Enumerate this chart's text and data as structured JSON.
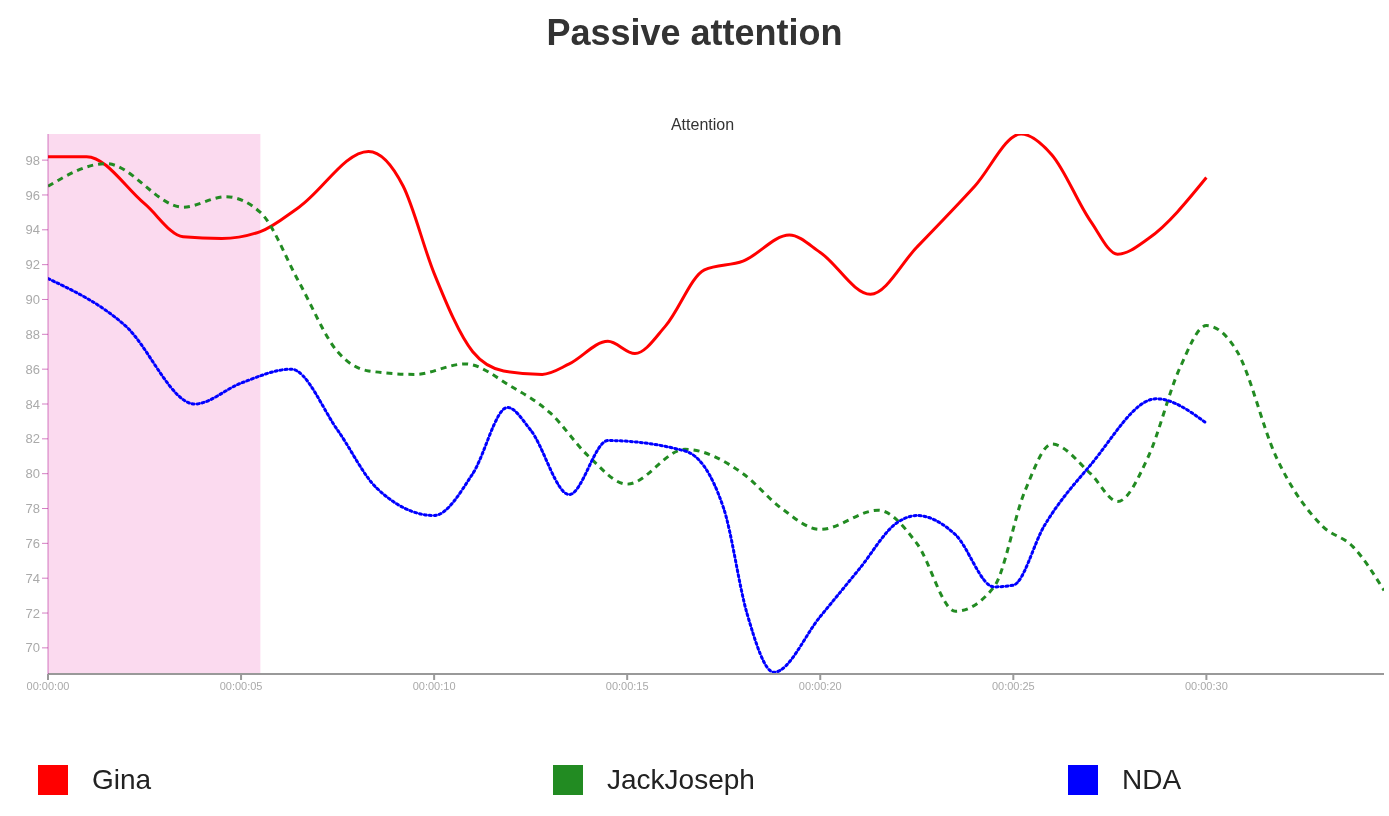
{
  "chart_data": {
    "type": "line",
    "title": "Passive attention",
    "ylabel": "Attention",
    "xlim": [
      0,
      34.6
    ],
    "ylim": [
      68.5,
      99.5
    ],
    "xticks": [
      {
        "value": 0,
        "label": "00:00:00"
      },
      {
        "value": 5,
        "label": "00:00:05"
      },
      {
        "value": 10,
        "label": "00:00:10"
      },
      {
        "value": 15,
        "label": "00:00:15"
      },
      {
        "value": 20,
        "label": "00:00:20"
      },
      {
        "value": 25,
        "label": "00:00:25"
      },
      {
        "value": 30,
        "label": "00:00:30"
      }
    ],
    "yticks": [
      70,
      72,
      74,
      76,
      78,
      80,
      82,
      84,
      86,
      88,
      90,
      92,
      94,
      96,
      98
    ],
    "bands": [
      {
        "axis": "x",
        "from": 0,
        "to": 5.5,
        "color": "#fbdaef"
      }
    ],
    "grid": false,
    "legend": "bottom",
    "marker": "none",
    "series": [
      {
        "name": "Gina",
        "color": "#ff0000",
        "line_style": "solid",
        "x": [
          0,
          1,
          2.5,
          3.5,
          4.5,
          5.5,
          6.5,
          8.3,
          9.2,
          10,
          11,
          11.8,
          12.8,
          13.5,
          14.5,
          15.2,
          16,
          17,
          18,
          19.2,
          20,
          21.3,
          22.5,
          24,
          25.2,
          26,
          27,
          27.7,
          28.5,
          30
        ],
        "values": [
          98.2,
          98.2,
          95.5,
          93.6,
          93.5,
          93.9,
          95.3,
          98.5,
          96.5,
          91.5,
          87,
          85.9,
          85.7,
          86.3,
          87.6,
          86.9,
          88.5,
          91.7,
          92.2,
          93.7,
          92.7,
          90.3,
          93,
          96.5,
          99.5,
          98.3,
          94.5,
          92.6,
          93.5,
          97.0
        ]
      },
      {
        "name": "JackJoseph",
        "color": "#228b22",
        "line_style": "dashed",
        "x": [
          0,
          1.5,
          3.5,
          4.6,
          5.5,
          6.5,
          7.5,
          8.3,
          9.5,
          10.8,
          12,
          13,
          14,
          15,
          16.5,
          18,
          19,
          20,
          21.5,
          22.5,
          23.5,
          24.5,
          25.3,
          26,
          27,
          27.7,
          28.5,
          29.3,
          30,
          30.8,
          31.8,
          33,
          33.8,
          34.6
        ],
        "values": [
          96.5,
          97.8,
          95.3,
          95.9,
          95,
          91,
          87,
          85.9,
          85.7,
          86.3,
          85,
          83.5,
          81,
          79.4,
          81.4,
          80,
          78,
          76.8,
          77.9,
          76,
          72.1,
          73.5,
          79,
          81.7,
          80,
          78.4,
          81,
          86,
          88.5,
          87,
          81,
          77,
          75.8,
          73.3
        ]
      },
      {
        "name": "NDA",
        "color": "#0000ff",
        "line_style": "dotted",
        "x": [
          0,
          2,
          3.8,
          5,
          6.3,
          7.5,
          8.5,
          10,
          11,
          11.9,
          12.5,
          13.5,
          14.5,
          16.5,
          17.5,
          18.1,
          18.8,
          20,
          21,
          22,
          22.5,
          23.5,
          24.5,
          25,
          25.8,
          27,
          28.7,
          30
        ],
        "values": [
          91.2,
          88.5,
          84,
          85.2,
          86,
          82.5,
          79.2,
          77.6,
          80,
          83.8,
          82.5,
          78.8,
          81.9,
          81.3,
          78,
          72,
          68.6,
          71.8,
          74.5,
          77.2,
          77.6,
          76.5,
          73.5,
          73.6,
          77,
          80.5,
          84.3,
          82.9
        ]
      }
    ]
  }
}
